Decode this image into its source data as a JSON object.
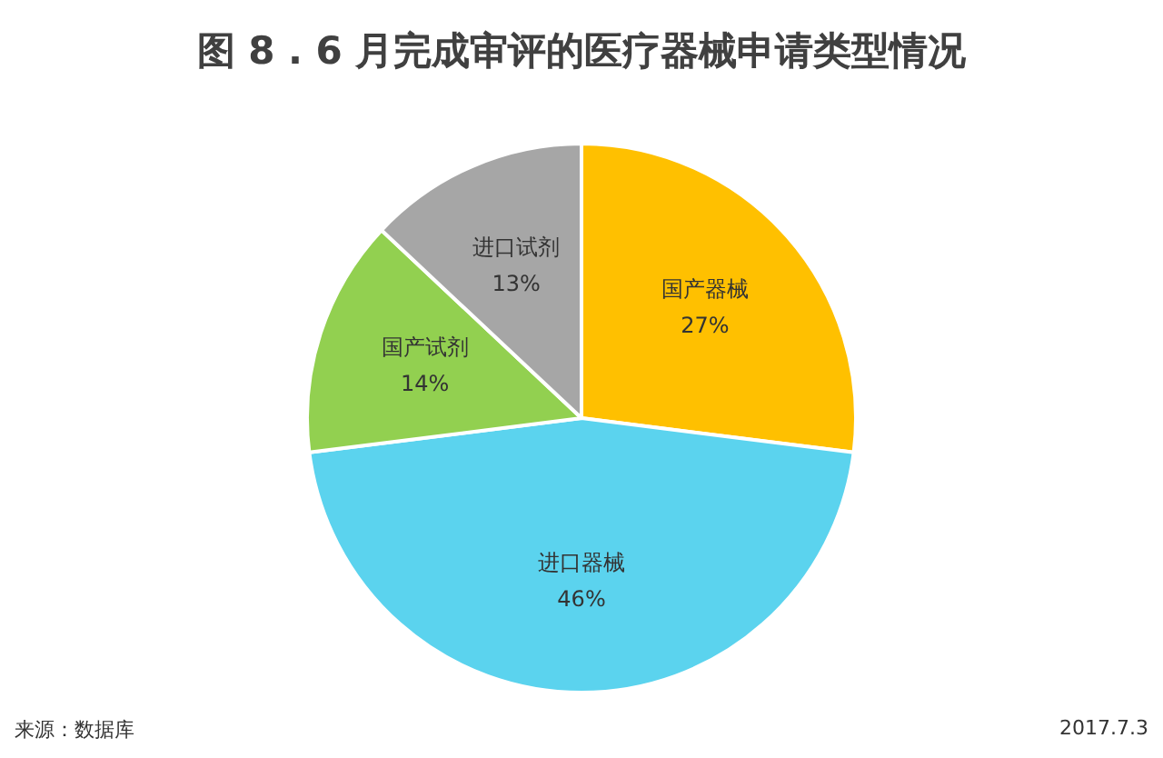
{
  "chart_data": {
    "type": "pie",
    "title": "图 8 . 6 月完成审评的医疗器械申请类型情况",
    "categories": [
      "国产器械",
      "进口器械",
      "国产试剂",
      "进口试剂"
    ],
    "values": [
      27,
      46,
      14,
      13
    ],
    "colors": [
      "#ffc000",
      "#5bd3ee",
      "#92d050",
      "#a6a6a6"
    ],
    "value_labels": [
      "27%",
      "46%",
      "14%",
      "13%"
    ],
    "legend": false,
    "annotations": [
      "来源：数据库",
      "2017.7.3"
    ]
  }
}
